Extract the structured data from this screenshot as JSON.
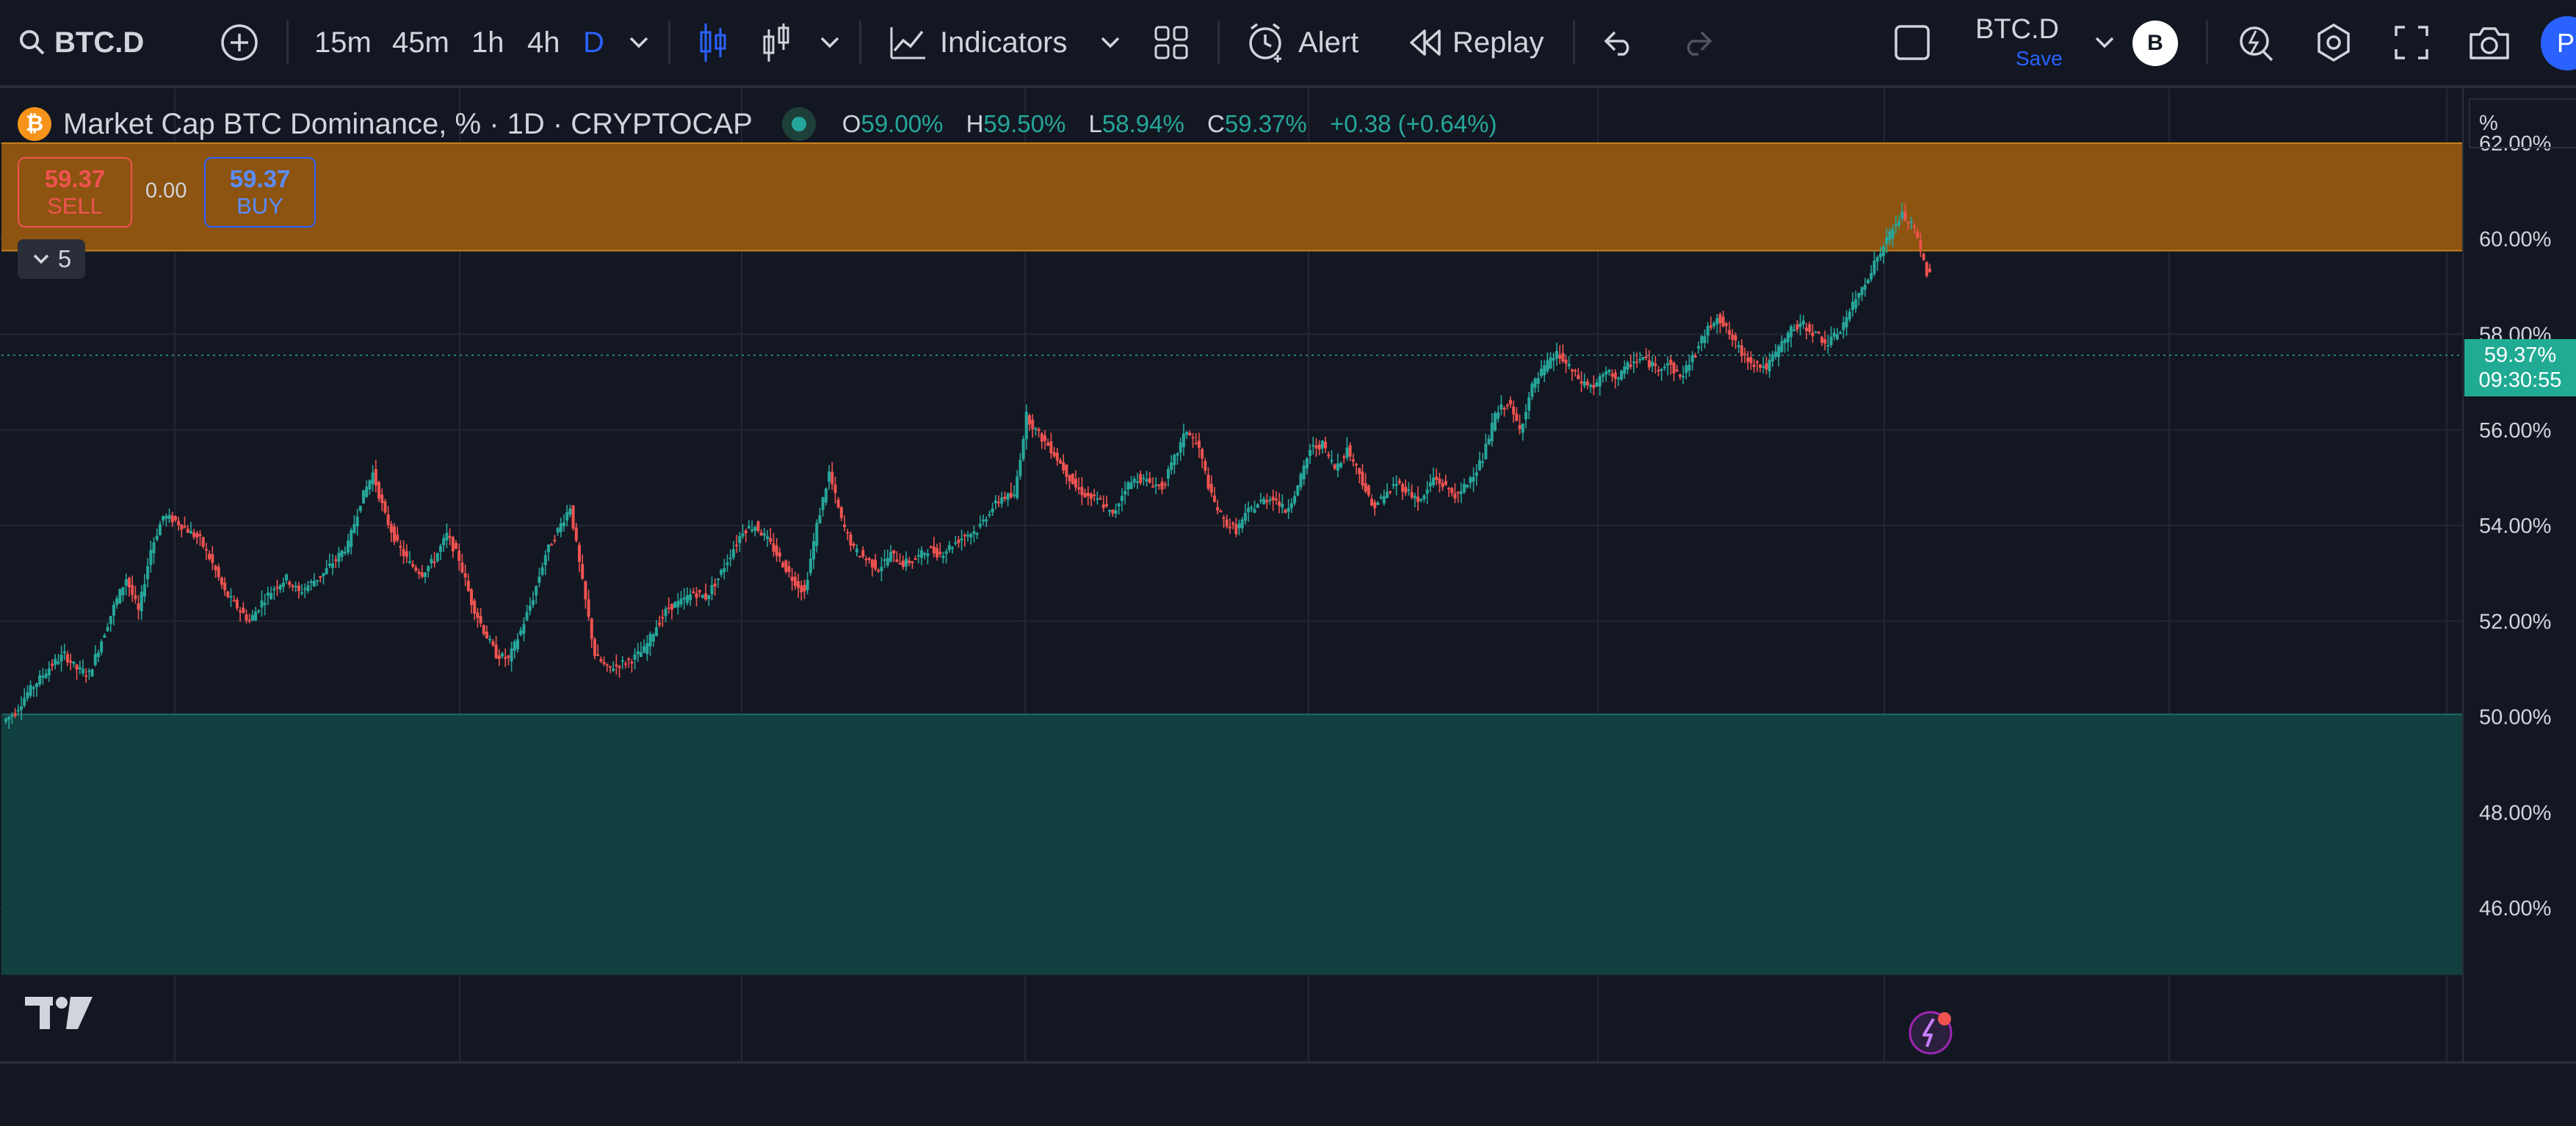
{
  "toolbar": {
    "symbol": "BTC.D",
    "intervals": [
      "15m",
      "45m",
      "1h",
      "4h",
      "D"
    ],
    "indicators_label": "Indicators",
    "alert_label": "Alert",
    "replay_label": "Replay",
    "layout_name": "BTC.D",
    "save_label": "Save",
    "avatar_letter": "B",
    "publish_letter": "P"
  },
  "legend": {
    "title": "Market Cap BTC Dominance, % · 1D · CRYPTOCAP",
    "coin_letter": "₿",
    "o_key": "O",
    "o_val": "59.00%",
    "h_key": "H",
    "h_val": "59.50%",
    "l_key": "L",
    "l_val": "58.94%",
    "c_key": "C",
    "c_val": "59.37%",
    "change": "+0.38 (+0.64%)"
  },
  "trade": {
    "sell_price": "59.37",
    "sell_label": "SELL",
    "spread": "0.00",
    "buy_price": "59.37",
    "buy_label": "BUY"
  },
  "collapse_count": "5",
  "price_scale": {
    "unit": "%",
    "labels": [
      "62.00%",
      "60.00%",
      "58.00%",
      "56.00%",
      "54.00%",
      "52.00%",
      "50.00%",
      "48.00%",
      "46.00%"
    ],
    "last_price": "59.37%",
    "countdown": "09:30:55"
  },
  "colors": {
    "background": "#131722",
    "up": "#26a69a",
    "down": "#ef5350",
    "resistance_zone": "#8c5410",
    "support_zone": "#123f3f",
    "accent": "#2962ff"
  },
  "chart_data": {
    "type": "line",
    "ylim": [
      44.6,
      63.6
    ],
    "y_ticks": [
      62,
      60,
      58,
      56,
      54,
      52,
      50,
      48,
      46
    ],
    "zones": [
      {
        "from": 59.75,
        "to": 62.0
      },
      {
        "from": 44.6,
        "to": 50.05
      }
    ],
    "last_value": 59.37,
    "series": [
      {
        "values": [
          49.9,
          50.1,
          50.5,
          50.8,
          51.1,
          51.3,
          51.0,
          50.9,
          51.6,
          52.3,
          52.9,
          52.2,
          53.5,
          54.2,
          54.1,
          53.9,
          53.7,
          53.2,
          52.6,
          52.3,
          52.0,
          52.4,
          52.7,
          52.9,
          52.6,
          52.8,
          53.0,
          53.3,
          53.6,
          54.5,
          55.1,
          54.2,
          53.6,
          53.2,
          53.0,
          53.3,
          53.8,
          53.3,
          52.4,
          51.8,
          51.3,
          51.2,
          51.8,
          52.5,
          53.4,
          53.9,
          54.4,
          52.8,
          51.3,
          51.0,
          51.1,
          51.2,
          51.4,
          51.9,
          52.3,
          52.4,
          52.6,
          52.5,
          52.9,
          53.4,
          53.9,
          54.0,
          53.7,
          53.3,
          52.9,
          52.6,
          54.0,
          55.1,
          54.1,
          53.5,
          53.3,
          53.1,
          53.4,
          53.2,
          53.3,
          53.5,
          53.4,
          53.6,
          53.8,
          53.9,
          54.3,
          54.6,
          54.6,
          56.3,
          55.9,
          55.6,
          55.2,
          54.8,
          54.6,
          54.5,
          54.2,
          54.8,
          55.0,
          54.9,
          54.8,
          55.4,
          56.0,
          55.6,
          54.6,
          54.1,
          53.9,
          54.3,
          54.5,
          54.6,
          54.3,
          54.8,
          55.6,
          55.7,
          55.2,
          55.6,
          55.1,
          54.4,
          54.6,
          54.9,
          54.7,
          54.5,
          55.0,
          54.8,
          54.6,
          55.0,
          55.4,
          56.3,
          56.6,
          56.0,
          56.9,
          57.3,
          57.6,
          57.3,
          57.0,
          56.9,
          57.2,
          57.1,
          57.4,
          57.5,
          57.3,
          57.4,
          57.1,
          57.5,
          58.0,
          58.4,
          58.0,
          57.6,
          57.4,
          57.3,
          57.7,
          58.1,
          58.2,
          58.0,
          57.8,
          58.1,
          58.6,
          59.1,
          59.6,
          60.1,
          60.5,
          60.2,
          59.3
        ]
      }
    ]
  }
}
